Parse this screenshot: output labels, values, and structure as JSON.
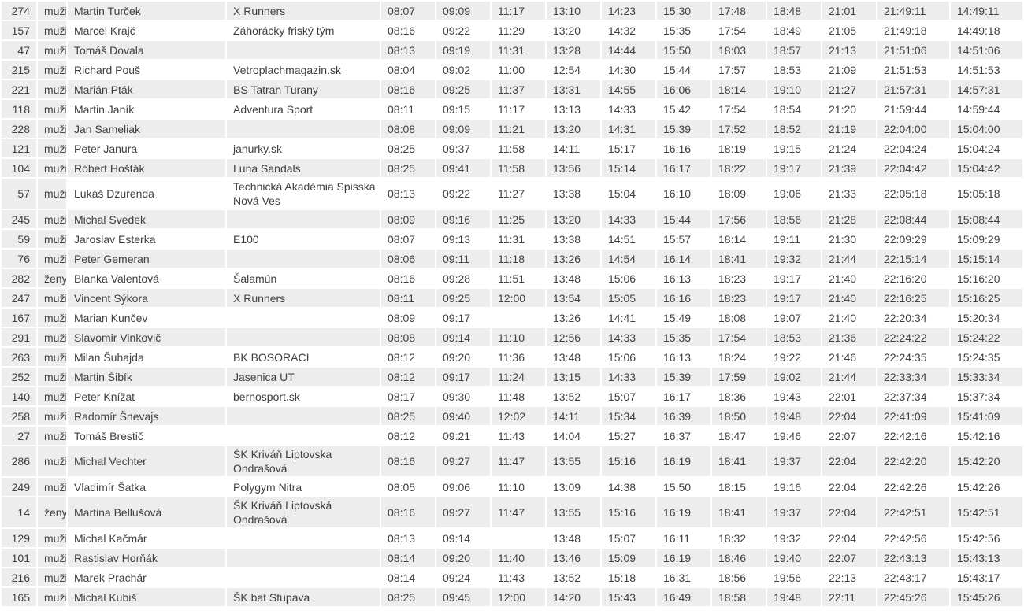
{
  "colors": {
    "stripe": "#ededed",
    "text": "#3c4043",
    "background": "#ffffff"
  },
  "table": {
    "rows": [
      {
        "bib": "274",
        "gender": "muži",
        "name": "Martin Turček",
        "team": "X Runners",
        "splits": [
          "08:07",
          "09:09",
          "11:17",
          "13:10",
          "14:23",
          "15:30",
          "17:48",
          "18:48",
          "21:01"
        ],
        "finish": "21:49:11",
        "net": "14:49:11"
      },
      {
        "bib": "157",
        "gender": "muži",
        "name": "Marcel Krajč",
        "team": "Záhorácky friský tým",
        "splits": [
          "08:16",
          "09:22",
          "11:29",
          "13:20",
          "14:32",
          "15:35",
          "17:54",
          "18:49",
          "21:05"
        ],
        "finish": "21:49:18",
        "net": "14:49:18"
      },
      {
        "bib": "47",
        "gender": "muži",
        "name": "Tomáš Dovala",
        "team": "",
        "splits": [
          "08:13",
          "09:19",
          "11:31",
          "13:28",
          "14:44",
          "15:50",
          "18:03",
          "18:57",
          "21:13"
        ],
        "finish": "21:51:06",
        "net": "14:51:06"
      },
      {
        "bib": "215",
        "gender": "muži",
        "name": "Richard Pouš",
        "team": "Vetroplachmagazin.sk",
        "splits": [
          "08:04",
          "09:02",
          "11:00",
          "12:54",
          "14:30",
          "15:44",
          "17:57",
          "18:53",
          "21:09"
        ],
        "finish": "21:51:53",
        "net": "14:51:53"
      },
      {
        "bib": "221",
        "gender": "muži",
        "name": "Marián Pták",
        "team": "BS Tatran Turany",
        "splits": [
          "08:16",
          "09:25",
          "11:37",
          "13:31",
          "14:55",
          "16:06",
          "18:14",
          "19:10",
          "21:27"
        ],
        "finish": "21:57:31",
        "net": "14:57:31"
      },
      {
        "bib": "118",
        "gender": "muži",
        "name": "Martin Janík",
        "team": "Adventura Sport",
        "splits": [
          "08:11",
          "09:15",
          "11:17",
          "13:13",
          "14:33",
          "15:42",
          "17:54",
          "18:54",
          "21:20"
        ],
        "finish": "21:59:44",
        "net": "14:59:44"
      },
      {
        "bib": "228",
        "gender": "muži",
        "name": "Jan Sameliak",
        "team": "",
        "splits": [
          "08:08",
          "09:09",
          "11:21",
          "13:20",
          "14:31",
          "15:39",
          "17:52",
          "18:52",
          "21:19"
        ],
        "finish": "22:04:00",
        "net": "15:04:00"
      },
      {
        "bib": "121",
        "gender": "muži",
        "name": "Peter Janura",
        "team": "janurky.sk",
        "splits": [
          "08:25",
          "09:37",
          "11:58",
          "14:11",
          "15:17",
          "16:16",
          "18:19",
          "19:15",
          "21:24"
        ],
        "finish": "22:04:24",
        "net": "15:04:24"
      },
      {
        "bib": "104",
        "gender": "muži",
        "name": "Róbert Hošták",
        "team": "Luna Sandals",
        "splits": [
          "08:25",
          "09:41",
          "11:58",
          "13:56",
          "15:14",
          "16:17",
          "18:22",
          "19:17",
          "21:39"
        ],
        "finish": "22:04:42",
        "net": "15:04:42"
      },
      {
        "bib": "57",
        "gender": "muži",
        "name": "Lukáš Dzurenda",
        "team": "Technická Akadémia Spisska Nová Ves",
        "splits": [
          "08:13",
          "09:22",
          "11:27",
          "13:38",
          "15:04",
          "16:10",
          "18:09",
          "19:06",
          "21:33"
        ],
        "finish": "22:05:18",
        "net": "15:05:18"
      },
      {
        "bib": "245",
        "gender": "muži",
        "name": "Michal Svedek",
        "team": "",
        "splits": [
          "08:09",
          "09:16",
          "11:25",
          "13:20",
          "14:33",
          "15:44",
          "17:56",
          "18:56",
          "21:28"
        ],
        "finish": "22:08:44",
        "net": "15:08:44"
      },
      {
        "bib": "59",
        "gender": "muži",
        "name": "Jaroslav Esterka",
        "team": "E100",
        "splits": [
          "08:07",
          "09:13",
          "11:31",
          "13:38",
          "14:51",
          "15:57",
          "18:14",
          "19:11",
          "21:30"
        ],
        "finish": "22:09:29",
        "net": "15:09:29"
      },
      {
        "bib": "76",
        "gender": "muži",
        "name": "Peter Gemeran",
        "team": "",
        "splits": [
          "08:06",
          "09:11",
          "11:18",
          "13:26",
          "14:54",
          "16:14",
          "18:41",
          "19:32",
          "21:44"
        ],
        "finish": "22:15:14",
        "net": "15:15:14"
      },
      {
        "bib": "282",
        "gender": "ženy",
        "name": "Blanka Valentová",
        "team": "Šalamún",
        "splits": [
          "08:16",
          "09:28",
          "11:51",
          "13:48",
          "15:06",
          "16:13",
          "18:23",
          "19:17",
          "21:40"
        ],
        "finish": "22:16:20",
        "net": "15:16:20"
      },
      {
        "bib": "247",
        "gender": "muži",
        "name": "Vincent Sýkora",
        "team": "X Runners",
        "splits": [
          "08:11",
          "09:25",
          "12:00",
          "13:54",
          "15:05",
          "16:16",
          "18:23",
          "19:17",
          "21:40"
        ],
        "finish": "22:16:25",
        "net": "15:16:25"
      },
      {
        "bib": "167",
        "gender": "muži",
        "name": "Marian Kunčev",
        "team": "",
        "splits": [
          "08:09",
          "09:17",
          "",
          "13:26",
          "14:41",
          "15:49",
          "18:08",
          "19:07",
          "21:40"
        ],
        "finish": "22:20:34",
        "net": "15:20:34"
      },
      {
        "bib": "291",
        "gender": "muži",
        "name": "Slavomir Vinkovič",
        "team": "",
        "splits": [
          "08:08",
          "09:14",
          "11:10",
          "12:56",
          "14:33",
          "15:35",
          "17:54",
          "18:53",
          "21:36"
        ],
        "finish": "22:24:22",
        "net": "15:24:22"
      },
      {
        "bib": "263",
        "gender": "muži",
        "name": "Milan Šuhajda",
        "team": "BK BOSORACI",
        "splits": [
          "08:12",
          "09:20",
          "11:36",
          "13:48",
          "15:06",
          "16:13",
          "18:24",
          "19:22",
          "21:46"
        ],
        "finish": "22:24:35",
        "net": "15:24:35"
      },
      {
        "bib": "252",
        "gender": "muži",
        "name": "Martin Šibík",
        "team": "Jasenica UT",
        "splits": [
          "08:12",
          "09:17",
          "11:24",
          "13:15",
          "14:33",
          "15:39",
          "17:59",
          "19:02",
          "21:44"
        ],
        "finish": "22:33:34",
        "net": "15:33:34"
      },
      {
        "bib": "140",
        "gender": "muži",
        "name": "Peter Knížat",
        "team": "bernosport.sk",
        "splits": [
          "08:17",
          "09:30",
          "11:48",
          "13:52",
          "15:07",
          "16:17",
          "18:36",
          "19:43",
          "22:01"
        ],
        "finish": "22:37:34",
        "net": "15:37:34"
      },
      {
        "bib": "258",
        "gender": "muži",
        "name": "Radomír Šnevajs",
        "team": "",
        "splits": [
          "08:25",
          "09:40",
          "12:02",
          "14:11",
          "15:34",
          "16:39",
          "18:50",
          "19:48",
          "22:04"
        ],
        "finish": "22:41:09",
        "net": "15:41:09"
      },
      {
        "bib": "27",
        "gender": "muži",
        "name": "Tomáš Brestič",
        "team": "",
        "splits": [
          "08:12",
          "09:21",
          "11:43",
          "14:04",
          "15:27",
          "16:37",
          "18:47",
          "19:46",
          "22:07"
        ],
        "finish": "22:42:16",
        "net": "15:42:16"
      },
      {
        "bib": "286",
        "gender": "muži",
        "name": "Michal Vechter",
        "team": "ŠK Kriváň Liptovska Ondrašová",
        "splits": [
          "08:16",
          "09:27",
          "11:47",
          "13:55",
          "15:16",
          "16:19",
          "18:41",
          "19:37",
          "22:04"
        ],
        "finish": "22:42:20",
        "net": "15:42:20"
      },
      {
        "bib": "249",
        "gender": "muži",
        "name": "Vladimír Šatka",
        "team": "Polygym Nitra",
        "splits": [
          "08:05",
          "09:06",
          "11:10",
          "13:09",
          "14:38",
          "15:50",
          "18:15",
          "19:16",
          "22:04"
        ],
        "finish": "22:42:26",
        "net": "15:42:26"
      },
      {
        "bib": "14",
        "gender": "ženy",
        "name": "Martina Bellušová",
        "team": "ŠK Kriváň Liptovská Ondrašová",
        "splits": [
          "08:16",
          "09:27",
          "11:47",
          "13:55",
          "15:16",
          "16:19",
          "18:41",
          "19:37",
          "22:04"
        ],
        "finish": "22:42:51",
        "net": "15:42:51"
      },
      {
        "bib": "129",
        "gender": "muži",
        "name": "Michal Kačmár",
        "team": "",
        "splits": [
          "08:13",
          "09:14",
          "",
          "13:48",
          "15:07",
          "16:11",
          "18:32",
          "19:32",
          "22:04"
        ],
        "finish": "22:42:56",
        "net": "15:42:56"
      },
      {
        "bib": "101",
        "gender": "muži",
        "name": "Rastislav Horňák",
        "team": "",
        "splits": [
          "08:14",
          "09:20",
          "11:40",
          "13:46",
          "15:09",
          "16:19",
          "18:46",
          "19:40",
          "22:07"
        ],
        "finish": "22:43:13",
        "net": "15:43:13"
      },
      {
        "bib": "216",
        "gender": "muži",
        "name": "Marek Prachár",
        "team": "",
        "splits": [
          "08:14",
          "09:24",
          "11:43",
          "13:52",
          "15:18",
          "16:31",
          "18:56",
          "19:56",
          "22:13"
        ],
        "finish": "22:43:17",
        "net": "15:43:17"
      },
      {
        "bib": "165",
        "gender": "muži",
        "name": "Michal Kubiš",
        "team": "ŠK bat Stupava",
        "splits": [
          "08:25",
          "09:45",
          "12:00",
          "14:20",
          "15:43",
          "16:49",
          "18:58",
          "19:48",
          "22:11"
        ],
        "finish": "22:45:26",
        "net": "15:45:26"
      }
    ]
  }
}
